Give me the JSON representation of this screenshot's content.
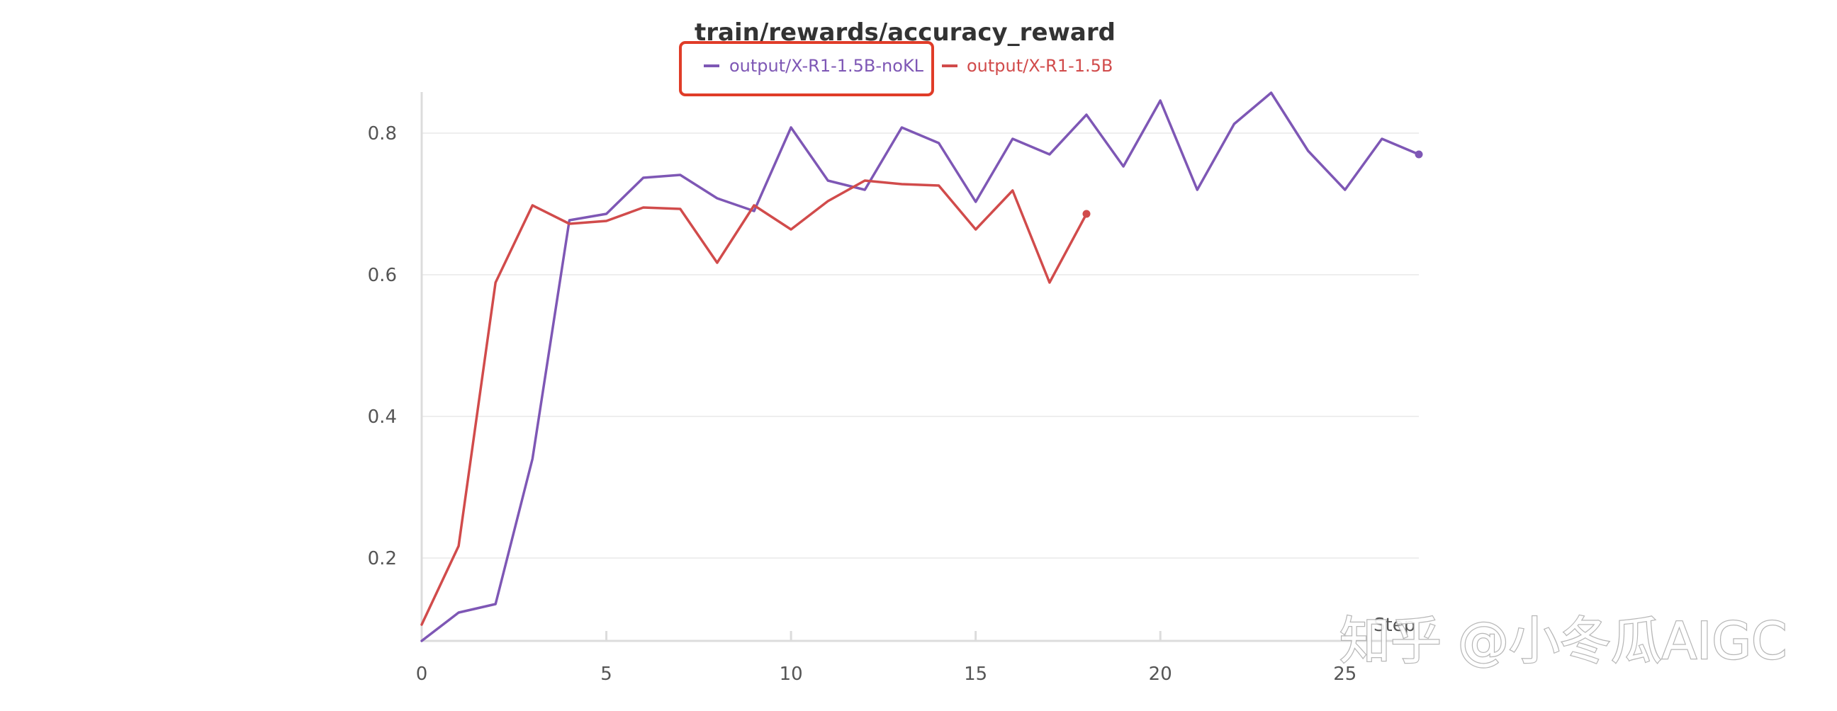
{
  "chart_data": {
    "type": "line",
    "title": "train/rewards/accuracy_reward",
    "xlabel": "Step",
    "ylabel": "",
    "xlim": [
      0,
      27
    ],
    "ylim": [
      0.083,
      0.86
    ],
    "x_ticks": [
      0,
      5,
      10,
      15,
      20,
      25
    ],
    "y_ticks": [
      0.2,
      0.4,
      0.6,
      0.8
    ],
    "y_tick_labels": [
      "0.2",
      "0.4",
      "0.6",
      "0.8"
    ],
    "grid": true,
    "legend_position": "top-center",
    "legend_highlighted": "output/X-R1-1.5B-noKL",
    "series": [
      {
        "name": "output/X-R1-1.5B-noKL",
        "color": "#7e57b5",
        "x": [
          0,
          1,
          2,
          3,
          4,
          5,
          6,
          7,
          8,
          9,
          10,
          11,
          12,
          13,
          14,
          15,
          16,
          17,
          18,
          19,
          20,
          21,
          22,
          23,
          24,
          25,
          26,
          27
        ],
        "y": [
          0.083,
          0.123,
          0.135,
          0.34,
          0.677,
          0.686,
          0.737,
          0.741,
          0.708,
          0.69,
          0.808,
          0.733,
          0.72,
          0.808,
          0.786,
          0.703,
          0.792,
          0.77,
          0.826,
          0.753,
          0.846,
          0.72,
          0.813,
          0.857,
          0.775,
          0.72,
          0.792,
          0.77
        ]
      },
      {
        "name": "output/X-R1-1.5B",
        "color": "#d14b4b",
        "x": [
          0,
          1,
          2,
          3,
          4,
          5,
          6,
          7,
          8,
          9,
          10,
          11,
          12,
          13,
          14,
          15,
          16,
          17,
          18
        ],
        "y": [
          0.106,
          0.217,
          0.589,
          0.698,
          0.672,
          0.676,
          0.695,
          0.693,
          0.617,
          0.698,
          0.664,
          0.704,
          0.733,
          0.728,
          0.726,
          0.664,
          0.719,
          0.589,
          0.686
        ]
      }
    ],
    "highlight_box_color": "#e03c28"
  },
  "watermark": {
    "text": "知乎 @小冬瓜AIGC"
  }
}
